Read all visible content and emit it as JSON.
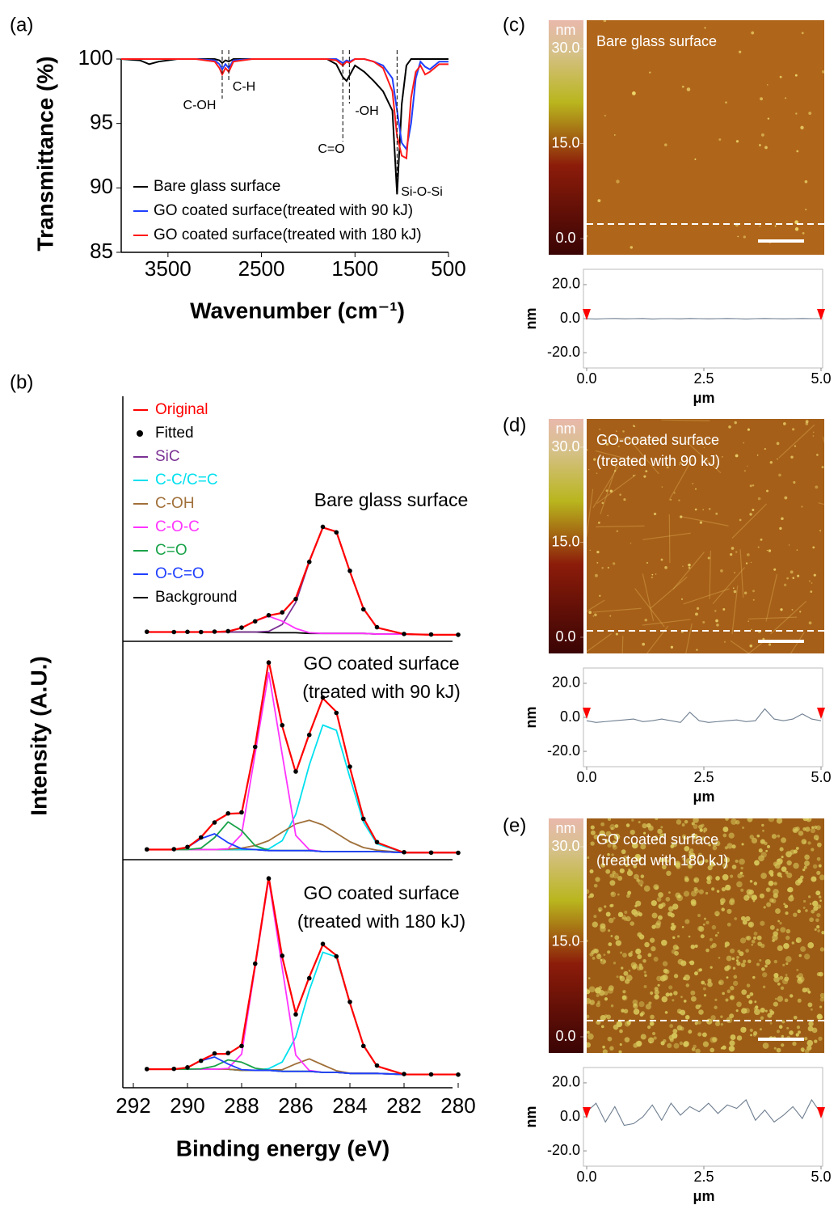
{
  "chart_data": [
    {
      "type": "line",
      "panel_label": "(a)",
      "ylabel": "Transmittance (%)",
      "xlabel": "Wavenumber (cm⁻¹)",
      "x": [
        4000,
        3800,
        3700,
        3600,
        3400,
        3200,
        3000,
        2950,
        2920,
        2885,
        2850,
        2800,
        2600,
        2200,
        1800,
        1700,
        1630,
        1590,
        1560,
        1500,
        1400,
        1300,
        1200,
        1100,
        1050,
        1000,
        950,
        900,
        850,
        800,
        750,
        700,
        600,
        500
      ],
      "xlim": [
        4000,
        500
      ],
      "xticks": [
        3500,
        2500,
        1500,
        500
      ],
      "ylim": [
        85,
        100
      ],
      "yticks": [
        85,
        90,
        95,
        100
      ],
      "series": [
        {
          "name": "Bare glass surface",
          "color": "#000000",
          "values": [
            100,
            99.9,
            99.6,
            99.8,
            100,
            100,
            100,
            99.9,
            99.7,
            99.9,
            99.8,
            100,
            100,
            100,
            100,
            99.6,
            98.6,
            98.3,
            98.7,
            99.5,
            99,
            98.3,
            97.5,
            96,
            89.5,
            96.5,
            99.5,
            100,
            100,
            100,
            100,
            100,
            100,
            100
          ]
        },
        {
          "name": "GO coated surface(treated with 90 kJ)",
          "color": "#1f3fff",
          "values": [
            100,
            100,
            100,
            100,
            100,
            100,
            99.9,
            99.6,
            99.2,
            99.6,
            99.3,
            99.9,
            100,
            100,
            100,
            100,
            99.7,
            99.9,
            99.8,
            100,
            100,
            99.8,
            99.5,
            98.5,
            96,
            93.5,
            93,
            95,
            98.5,
            99.8,
            99.4,
            99.2,
            99.8,
            99.8
          ]
        },
        {
          "name": "GO coated surface(treated with 180 kJ)",
          "color": "#ff1a1a",
          "values": [
            100,
            100,
            100,
            100,
            100,
            100,
            99.8,
            99.3,
            98.8,
            99.3,
            99,
            99.8,
            100,
            100,
            100,
            99.9,
            99.5,
            99.8,
            99.7,
            100,
            100,
            99.8,
            99.3,
            97.5,
            94,
            92.5,
            92.3,
            97,
            99,
            99.5,
            98.8,
            99,
            99.6,
            99.6
          ]
        }
      ],
      "annotations": [
        {
          "text": "C-OH",
          "x": 2920
        },
        {
          "text": "C-H",
          "x": 2850
        },
        {
          "text": "C=O",
          "x": 1630
        },
        {
          "text": "-OH",
          "x": 1560
        },
        {
          "text": "Si-O-Si",
          "x": 1050
        }
      ]
    },
    {
      "type": "line",
      "panel_label": "(b)",
      "ylabel": "Intensity (A.U.)",
      "xlabel": "Binding energy (eV)",
      "x": [
        291.5,
        290.5,
        290,
        289.5,
        289,
        288.5,
        288,
        287.5,
        287,
        286.5,
        286,
        285.5,
        285,
        284.5,
        284,
        283.5,
        283,
        282,
        281,
        280
      ],
      "xlim": [
        292,
        280
      ],
      "xticks": [
        292,
        290,
        288,
        286,
        284,
        282,
        280
      ],
      "ylim": [
        0,
        100
      ],
      "series": [
        {
          "name": "Original",
          "color": "#ff0000",
          "style": "line"
        },
        {
          "name": "Fitted",
          "color": "#000000",
          "style": "dots"
        },
        {
          "name": "SiC",
          "color": "#7b3294",
          "style": "line"
        },
        {
          "name": "C-C/C=C",
          "color": "#00e0ee",
          "style": "line"
        },
        {
          "name": "C-OH",
          "color": "#a0703a",
          "style": "line"
        },
        {
          "name": "C-O-C",
          "color": "#ff33ff",
          "style": "line"
        },
        {
          "name": "C=O",
          "color": "#1aa34a",
          "style": "line"
        },
        {
          "name": "O-C=O",
          "color": "#1f3fff",
          "style": "line"
        },
        {
          "name": "Background",
          "color": "#000000",
          "style": "line"
        }
      ],
      "panels": [
        {
          "title": [
            "Bare glass surface"
          ],
          "values": [
            [
              5,
              5,
              5,
              5,
              5,
              5.5,
              8,
              13,
              17,
              18.9,
              29.6,
              56.5,
              81,
              78,
              49,
              22,
              8.2,
              3.5,
              3,
              3
            ],
            [
              5.2,
              5,
              5.1,
              5,
              5.3,
              5.6,
              8.2,
              12.8,
              17.2,
              19.3,
              29,
              56,
              81.5,
              77.5,
              49.5,
              21.5,
              8.5,
              3.6,
              3.2,
              3
            ],
            [
              5,
              5,
              5,
              5,
              5,
              5,
              5,
              5,
              5.5,
              10.5,
              26.5,
              56,
              81,
              78,
              49,
              22,
              8.2,
              3.5,
              3,
              3
            ],
            null,
            null,
            [
              5,
              5,
              5,
              5,
              5,
              5.5,
              8,
              13,
              16.5,
              12.9,
              7.6,
              4.5,
              4,
              4,
              4,
              4,
              3.5,
              3.5,
              3,
              3
            ],
            null,
            null,
            [
              5,
              5,
              5,
              5,
              5,
              5,
              5,
              5,
              4.5,
              4.5,
              4.5,
              4,
              4,
              4,
              4,
              4,
              3.5,
              3.5,
              3,
              3
            ]
          ]
        },
        {
          "title": [
            "GO coated surface",
            "(treated with 90 kJ)"
          ],
          "values": [
            [
              3,
              3,
              4.1,
              9.1,
              16.7,
              20.7,
              21,
              54.4,
              96.3,
              64,
              41.1,
              60.2,
              77.8,
              71.1,
              43.5,
              18.6,
              6.5,
              1.5,
              1.5,
              1.5
            ],
            [
              3.1,
              3.2,
              4.3,
              9,
              16.4,
              20.9,
              21.4,
              53.8,
              95.5,
              64.5,
              41.6,
              59.7,
              78.2,
              70.6,
              44,
              18.2,
              6.7,
              1.7,
              1.5,
              1.4
            ],
            null,
            [
              3,
              3,
              3,
              3,
              3,
              3,
              3,
              3,
              3.3,
              7.4,
              20.4,
              44.8,
              64.6,
              62,
              38.6,
              16.6,
              5.8,
              1.5,
              1.5,
              1.5
            ],
            [
              3,
              3,
              3,
              3,
              3,
              3.2,
              3.7,
              5,
              7.4,
              11.6,
              15.7,
              17.5,
              15.2,
              11.1,
              6.9,
              4,
              2.7,
              1.5,
              1.5,
              1.5
            ],
            [
              3,
              3,
              3,
              3,
              3,
              3.4,
              10.5,
              50.5,
              90.5,
              50,
              10,
              2.9,
              2,
              2,
              2,
              2,
              2,
              1.5,
              1.5,
              1.5
            ],
            [
              3,
              3,
              3,
              3.7,
              8.9,
              16.7,
              12.4,
              4.9,
              2.6,
              2.5,
              2.5,
              2.5,
              2,
              2,
              2,
              2,
              2,
              1.5,
              1.5,
              1.5
            ],
            [
              3,
              3,
              4.1,
              8.4,
              10.8,
              6.4,
              3.4,
              3,
              2.5,
              2.5,
              2.5,
              2.5,
              2,
              2,
              2,
              2,
              2,
              1.5,
              1.5,
              1.5
            ],
            [
              3,
              3,
              3,
              3,
              3,
              3,
              3,
              3,
              2.5,
              2.5,
              2.5,
              2.5,
              2,
              2,
              2,
              2,
              2,
              1.5,
              1.5,
              1.5
            ]
          ]
        },
        {
          "title": [
            "GO coated surface",
            "(treated with 180 kJ)"
          ],
          "values": [
            [
              5,
              5,
              5.8,
              9.3,
              12.4,
              12.4,
              16.5,
              55.2,
              97.5,
              59,
              31.9,
              49.4,
              64.9,
              59.8,
              36.9,
              16.5,
              6.5,
              2.5,
              2.5,
              2.5
            ],
            [
              5.1,
              5.2,
              5.9,
              9.1,
              12.6,
              12.8,
              16.2,
              55.8,
              96.8,
              59.6,
              31.4,
              48.8,
              65.3,
              59.3,
              37.4,
              16.2,
              6.8,
              2.7,
              2.5,
              2.4
            ],
            null,
            [
              5,
              5,
              5,
              5,
              5,
              5,
              4.5,
              4.5,
              5.3,
              8.5,
              20.5,
              43,
              61.3,
              59,
              36.8,
              16.5,
              6.5,
              2.5,
              2.5,
              2.5
            ],
            [
              5,
              5,
              5,
              5,
              5,
              5,
              4.5,
              4.5,
              4.6,
              4.8,
              7.6,
              10,
              7.1,
              4.3,
              3.1,
              3,
              3,
              2.5,
              2.5,
              2.5
            ],
            [
              5,
              5,
              5,
              5,
              5,
              5.4,
              12.3,
              54.2,
              96.5,
              53.7,
              11.8,
              4.4,
              3.5,
              3.5,
              3,
              3,
              3,
              2.5,
              2.5,
              2.5
            ],
            [
              5,
              5,
              5,
              5.2,
              6.5,
              9.5,
              8.4,
              5.5,
              4.6,
              4,
              4,
              4,
              3.5,
              3.5,
              3,
              3,
              3,
              2.5,
              2.5,
              2.5
            ],
            [
              5,
              5,
              5.8,
              9.1,
              10.9,
              7.5,
              4.8,
              4.5,
              4.5,
              4,
              4,
              4,
              3.5,
              3.5,
              3,
              3,
              3,
              2.5,
              2.5,
              2.5
            ],
            [
              5,
              5,
              5,
              5,
              5,
              5,
              4.5,
              4.5,
              4.5,
              4,
              4,
              4,
              3.5,
              3.5,
              3,
              3,
              3,
              2.5,
              2.5,
              2.5
            ]
          ]
        }
      ]
    },
    {
      "type": "afm",
      "panel_label": "(c)",
      "image_title": [
        "Bare glass surface"
      ],
      "cbar_label": "nm",
      "clim": [
        0,
        30
      ],
      "cticks": [
        {
          "value": 30,
          "label": "30.0"
        },
        {
          "value": 15,
          "label": "15.0"
        },
        {
          "value": 0,
          "label": "0.0"
        }
      ],
      "profile": {
        "xlabel": "μm",
        "ylabel": "nm",
        "x": [
          0,
          0.2,
          0.4,
          0.6,
          0.8,
          1,
          1.2,
          1.4,
          1.6,
          1.8,
          2,
          2.2,
          2.4,
          2.6,
          2.8,
          3,
          3.2,
          3.4,
          3.6,
          3.8,
          4,
          4.2,
          4.4,
          4.6,
          4.8,
          5
        ],
        "values": [
          0,
          -0.2,
          0,
          0.1,
          -0.1,
          0,
          0.1,
          -0.2,
          0,
          0,
          -0.1,
          0.1,
          0,
          -0.1,
          0,
          0.1,
          0,
          -0.2,
          0,
          0.1,
          0,
          -0.1,
          0,
          0.1,
          0,
          0
        ],
        "xlim": [
          0,
          5
        ],
        "xticks": [
          {
            "value": 0,
            "label": "0.0"
          },
          {
            "value": 2.5,
            "label": "2.5"
          },
          {
            "value": 5,
            "label": "5.0"
          }
        ],
        "ylim": [
          -29,
          29
        ],
        "yticks": [
          {
            "value": 20,
            "label": "20.0"
          },
          {
            "value": 0,
            "label": "0.0"
          },
          {
            "value": -20,
            "label": "-20.0"
          }
        ]
      }
    },
    {
      "type": "afm",
      "panel_label": "(d)",
      "image_title": [
        "GO-coated surface",
        "(treated with 90 kJ)"
      ],
      "cbar_label": "nm",
      "clim": [
        0,
        30
      ],
      "cticks": [
        {
          "value": 30,
          "label": "30.0"
        },
        {
          "value": 15,
          "label": "15.0"
        },
        {
          "value": 0,
          "label": "0.0"
        }
      ],
      "profile": {
        "xlabel": "μm",
        "ylabel": "nm",
        "x": [
          0,
          0.2,
          0.4,
          0.6,
          0.8,
          1,
          1.2,
          1.4,
          1.6,
          1.8,
          2,
          2.2,
          2.4,
          2.6,
          2.8,
          3,
          3.2,
          3.4,
          3.6,
          3.8,
          4,
          4.2,
          4.4,
          4.6,
          4.8,
          5
        ],
        "values": [
          -2,
          -3,
          -2.5,
          -2,
          -1.5,
          -1,
          -2.5,
          -2,
          -1,
          -2,
          -3,
          3,
          -2,
          -3,
          -2.5,
          -2,
          -1.5,
          -2.5,
          -2,
          5,
          -1,
          -2,
          -1,
          2,
          -1,
          -2
        ],
        "xlim": [
          0,
          5
        ],
        "xticks": [
          {
            "value": 0,
            "label": "0.0"
          },
          {
            "value": 2.5,
            "label": "2.5"
          },
          {
            "value": 5,
            "label": "5.0"
          }
        ],
        "ylim": [
          -29,
          29
        ],
        "yticks": [
          {
            "value": 20,
            "label": "20.0"
          },
          {
            "value": 0,
            "label": "0.0"
          },
          {
            "value": -20,
            "label": "-20.0"
          }
        ]
      }
    },
    {
      "type": "afm",
      "panel_label": "(e)",
      "image_title": [
        "GO coated surface",
        "(treated with 180 kJ)"
      ],
      "cbar_label": "nm",
      "clim": [
        0,
        30
      ],
      "cticks": [
        {
          "value": 30,
          "label": "30.0"
        },
        {
          "value": 15,
          "label": "15.0"
        },
        {
          "value": 0,
          "label": "0.0"
        }
      ],
      "profile": {
        "xlabel": "μm",
        "ylabel": "nm",
        "x": [
          0,
          0.2,
          0.4,
          0.6,
          0.8,
          1,
          1.2,
          1.4,
          1.6,
          1.8,
          2,
          2.2,
          2.4,
          2.6,
          2.8,
          3,
          3.2,
          3.4,
          3.6,
          3.8,
          4,
          4.2,
          4.4,
          4.6,
          4.8,
          5
        ],
        "values": [
          3,
          8,
          -3,
          6,
          -5,
          -4,
          0,
          7,
          -2,
          8,
          1,
          6,
          3,
          8,
          2,
          7,
          5,
          10,
          -2,
          4,
          -3,
          1,
          6,
          -1,
          10,
          2
        ],
        "xlim": [
          0,
          5
        ],
        "xticks": [
          {
            "value": 0,
            "label": "0.0"
          },
          {
            "value": 2.5,
            "label": "2.5"
          },
          {
            "value": 5,
            "label": "5.0"
          }
        ],
        "ylim": [
          -29,
          29
        ],
        "yticks": [
          {
            "value": 20,
            "label": "20.0"
          },
          {
            "value": 0,
            "label": "0.0"
          },
          {
            "value": -20,
            "label": "-20.0"
          }
        ]
      }
    }
  ]
}
